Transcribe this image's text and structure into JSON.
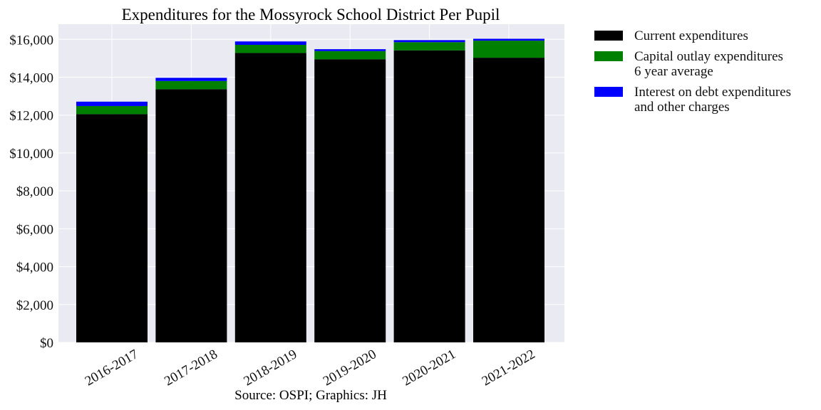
{
  "chart_data": {
    "type": "bar",
    "stacked": true,
    "title": "Expenditures for the Mossyrock School District Per Pupil",
    "caption": "Source: OSPI; Graphics: JH",
    "categories": [
      "2016-2017",
      "2017-2018",
      "2018-2019",
      "2019-2020",
      "2020-2021",
      "2021-2022"
    ],
    "series": [
      {
        "name": "Current expenditures",
        "color": "#000000",
        "values": [
          12050,
          13370,
          15280,
          14950,
          15420,
          15030
        ]
      },
      {
        "name": "Capital outlay expenditures\n6 year average",
        "color": "#008000",
        "values": [
          430,
          430,
          430,
          430,
          430,
          900
        ]
      },
      {
        "name": "Interest on debt expenditures\nand other charges",
        "color": "#0000ff",
        "values": [
          230,
          170,
          180,
          100,
          110,
          100
        ]
      }
    ],
    "ylim": [
      0,
      16800
    ],
    "yticks": [
      0,
      2000,
      4000,
      6000,
      8000,
      10000,
      12000,
      14000,
      16000
    ],
    "ytick_labels": [
      "$0",
      "$2,000",
      "$4,000",
      "$6,000",
      "$8,000",
      "$10,000",
      "$12,000",
      "$14,000",
      "$16,000"
    ],
    "grid": true,
    "legend_position": "outside-right"
  }
}
